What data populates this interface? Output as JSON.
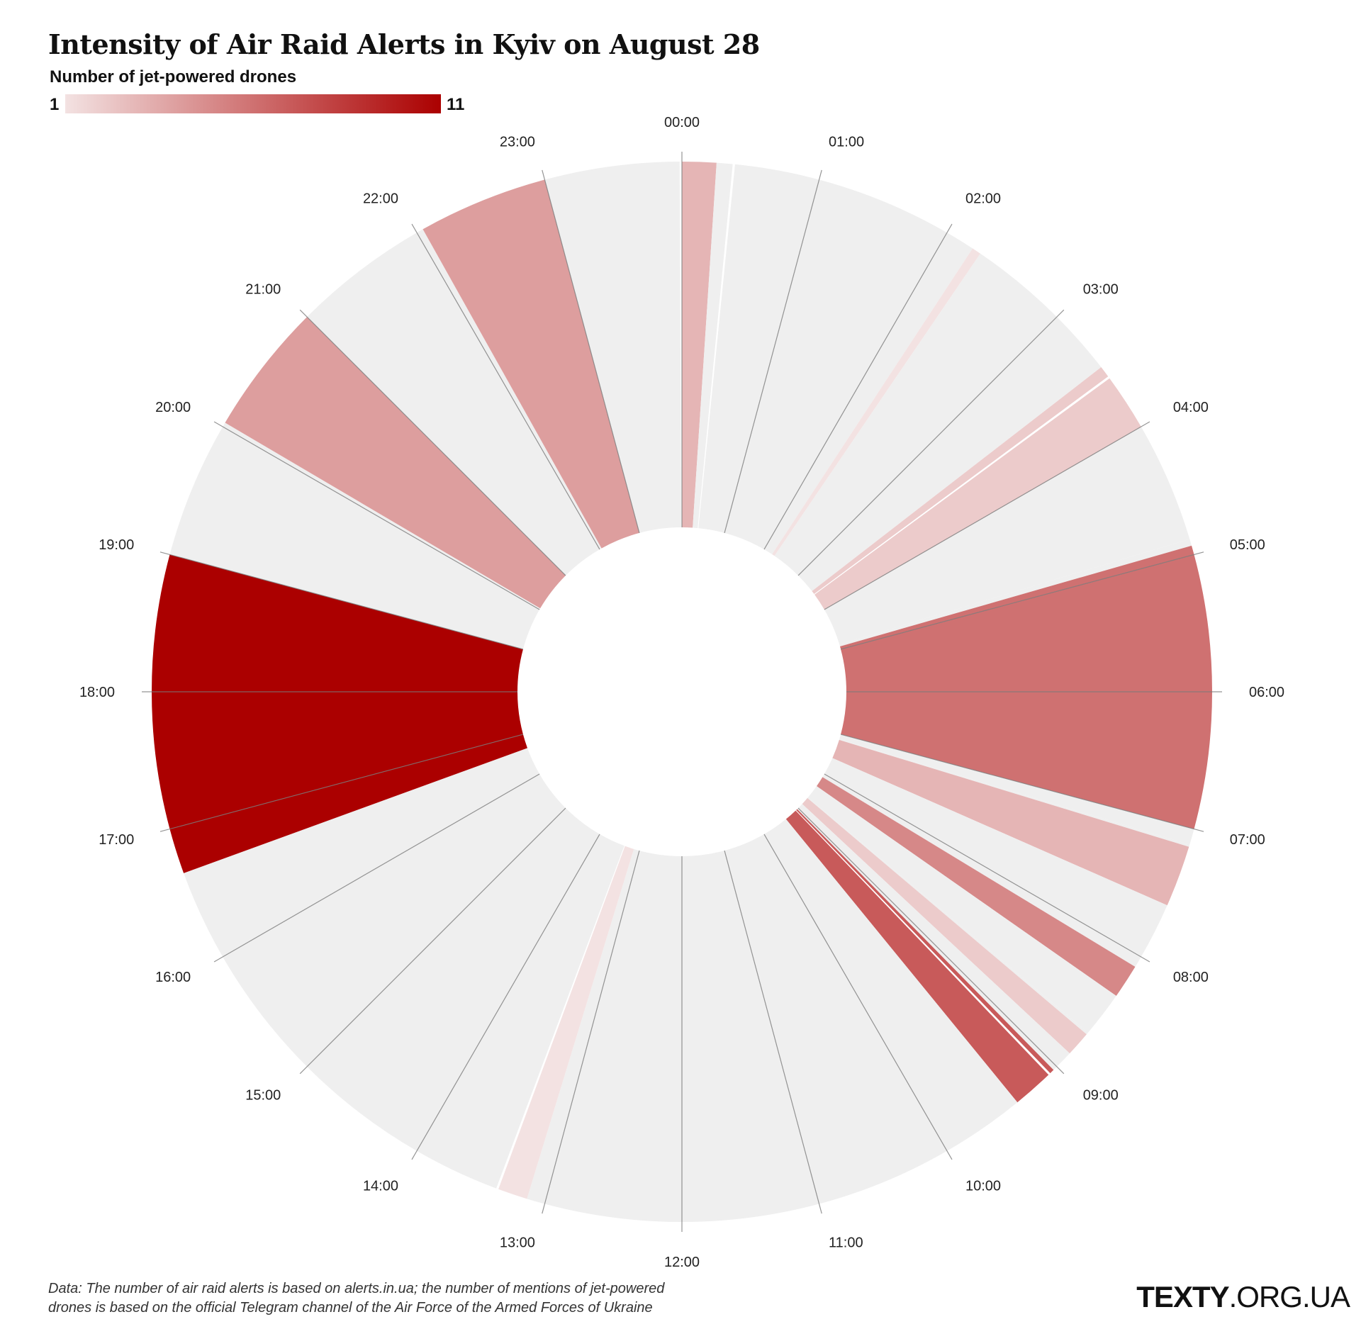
{
  "header": {
    "title": "Intensity of Air Raid Alerts in Kyiv on August 28",
    "legend_label": "Number of jet-powered drones",
    "legend_min": "1",
    "legend_max": "11"
  },
  "colors": {
    "empty": "#efefef",
    "scale_low": "#f3e2e2",
    "scale_high": "#ab0000",
    "hour_line": "#7a7a7a"
  },
  "chart_data": {
    "type": "radial-heatmap",
    "title": "Intensity of Air Raid Alerts in Kyiv on August 28",
    "legend": {
      "label": "Number of jet-powered drones",
      "min": 1,
      "max": 11
    },
    "hour_labels": [
      "00:00",
      "01:00",
      "02:00",
      "03:00",
      "04:00",
      "05:00",
      "06:00",
      "07:00",
      "08:00",
      "09:00",
      "10:00",
      "11:00",
      "12:00",
      "13:00",
      "14:00",
      "15:00",
      "16:00",
      "17:00",
      "18:00",
      "19:00",
      "20:00",
      "21:00",
      "22:00",
      "23:00"
    ],
    "segments": [
      {
        "hour": 0,
        "start_min": 0,
        "end_min": 15,
        "drones": 3,
        "alert": true
      },
      {
        "hour": 0,
        "start_min": 15,
        "end_min": 22,
        "drones": 0,
        "alert": true
      },
      {
        "hour": 0,
        "start_min": 23,
        "end_min": 60,
        "drones": 0,
        "alert": true
      },
      {
        "hour": 1,
        "start_min": 0,
        "end_min": 60,
        "drones": 0,
        "alert": true
      },
      {
        "hour": 2,
        "start_min": 0,
        "end_min": 13,
        "drones": 0,
        "alert": true
      },
      {
        "hour": 2,
        "start_min": 13,
        "end_min": 17,
        "drones": 1,
        "alert": true
      },
      {
        "hour": 2,
        "start_min": 17,
        "end_min": 60,
        "drones": 0,
        "alert": true
      },
      {
        "hour": 3,
        "start_min": 0,
        "end_min": 29,
        "drones": 0,
        "alert": true
      },
      {
        "hour": 3,
        "start_min": 29,
        "end_min": 34,
        "drones": 2,
        "alert": true
      },
      {
        "hour": 3,
        "start_min": 35,
        "end_min": 60,
        "drones": 2,
        "alert": true
      },
      {
        "hour": 4,
        "start_min": 0,
        "end_min": 53,
        "drones": 0,
        "alert": true
      },
      {
        "hour": 4,
        "start_min": 53,
        "end_min": 56,
        "drones": 0,
        "alert": true
      },
      {
        "hour": 4,
        "start_min": 56,
        "end_min": 60,
        "drones": 6,
        "alert": true
      },
      {
        "hour": 5,
        "start_min": 0,
        "end_min": 60,
        "drones": 6,
        "alert": true
      },
      {
        "hour": 6,
        "start_min": 0,
        "end_min": 60,
        "drones": 6,
        "alert": true
      },
      {
        "hour": 7,
        "start_min": 0,
        "end_min": 7,
        "drones": 0,
        "alert": true
      },
      {
        "hour": 7,
        "start_min": 7,
        "end_min": 8,
        "drones": 0,
        "alert": true
      },
      {
        "hour": 7,
        "start_min": 8,
        "end_min": 35,
        "drones": 3,
        "alert": true
      },
      {
        "hour": 7,
        "start_min": 35,
        "end_min": 60,
        "drones": 0,
        "alert": true
      },
      {
        "hour": 8,
        "start_min": 0,
        "end_min": 5,
        "drones": 0,
        "alert": true
      },
      {
        "hour": 8,
        "start_min": 5,
        "end_min": 20,
        "drones": 5,
        "alert": true
      },
      {
        "hour": 8,
        "start_min": 20,
        "end_min": 40,
        "drones": 0,
        "alert": true
      },
      {
        "hour": 8,
        "start_min": 40,
        "end_min": 41,
        "drones": 0,
        "alert": true
      },
      {
        "hour": 8,
        "start_min": 41,
        "end_min": 52,
        "drones": 2,
        "alert": true
      },
      {
        "hour": 8,
        "start_min": 52,
        "end_min": 60,
        "drones": 0,
        "alert": true
      },
      {
        "hour": 9,
        "start_min": 0,
        "end_min": 2,
        "drones": 0,
        "alert": true
      },
      {
        "hour": 9,
        "start_min": 2,
        "end_min": 4,
        "drones": 7,
        "alert": true
      },
      {
        "hour": 9,
        "start_min": 5,
        "end_min": 23,
        "drones": 7,
        "alert": true
      },
      {
        "hour": 9,
        "start_min": 23,
        "end_min": 60,
        "drones": 0,
        "alert": true
      },
      {
        "hour": 10,
        "start_min": 0,
        "end_min": 60,
        "drones": 0,
        "alert": true
      },
      {
        "hour": 11,
        "start_min": 0,
        "end_min": 60,
        "drones": 0,
        "alert": true
      },
      {
        "hour": 12,
        "start_min": 0,
        "end_min": 60,
        "drones": 0,
        "alert": true
      },
      {
        "hour": 13,
        "start_min": 0,
        "end_min": 8,
        "drones": 0,
        "alert": true
      },
      {
        "hour": 13,
        "start_min": 8,
        "end_min": 21,
        "drones": 1,
        "alert": true
      },
      {
        "hour": 13,
        "start_min": 22,
        "end_min": 60,
        "drones": 0,
        "alert": true
      },
      {
        "hour": 14,
        "start_min": 0,
        "end_min": 60,
        "drones": 0,
        "alert": true
      },
      {
        "hour": 15,
        "start_min": 0,
        "end_min": 60,
        "drones": 0,
        "alert": true
      },
      {
        "hour": 16,
        "start_min": 0,
        "end_min": 40,
        "drones": 0,
        "alert": true
      },
      {
        "hour": 16,
        "start_min": 40,
        "end_min": 60,
        "drones": 11,
        "alert": true
      },
      {
        "hour": 17,
        "start_min": 0,
        "end_min": 60,
        "drones": 11,
        "alert": true
      },
      {
        "hour": 18,
        "start_min": 0,
        "end_min": 60,
        "drones": 11,
        "alert": true
      },
      {
        "hour": 19,
        "start_min": 0,
        "end_min": 60,
        "drones": 0,
        "alert": true
      },
      {
        "hour": 20,
        "start_min": 0,
        "end_min": 2,
        "drones": 0,
        "alert": true
      },
      {
        "hour": 20,
        "start_min": 2,
        "end_min": 60,
        "drones": 4,
        "alert": true
      },
      {
        "hour": 21,
        "start_min": 0,
        "end_min": 60,
        "drones": 0,
        "alert": true
      },
      {
        "hour": 22,
        "start_min": 0,
        "end_min": 3,
        "drones": 0,
        "alert": true
      },
      {
        "hour": 22,
        "start_min": 3,
        "end_min": 60,
        "drones": 4,
        "alert": true
      },
      {
        "hour": 23,
        "start_min": 0,
        "end_min": 59,
        "drones": 0,
        "alert": true
      }
    ]
  },
  "footer": {
    "source_line1": "Data: The number of air raid alerts is based on alerts.in.ua; the number of mentions of jet-powered",
    "source_line2": "drones is based on the official Telegram channel of the Air Force of the Armed Forces of Ukraine",
    "logo_bold": "TEXTY",
    "logo_thin": ".ORG.UA"
  }
}
